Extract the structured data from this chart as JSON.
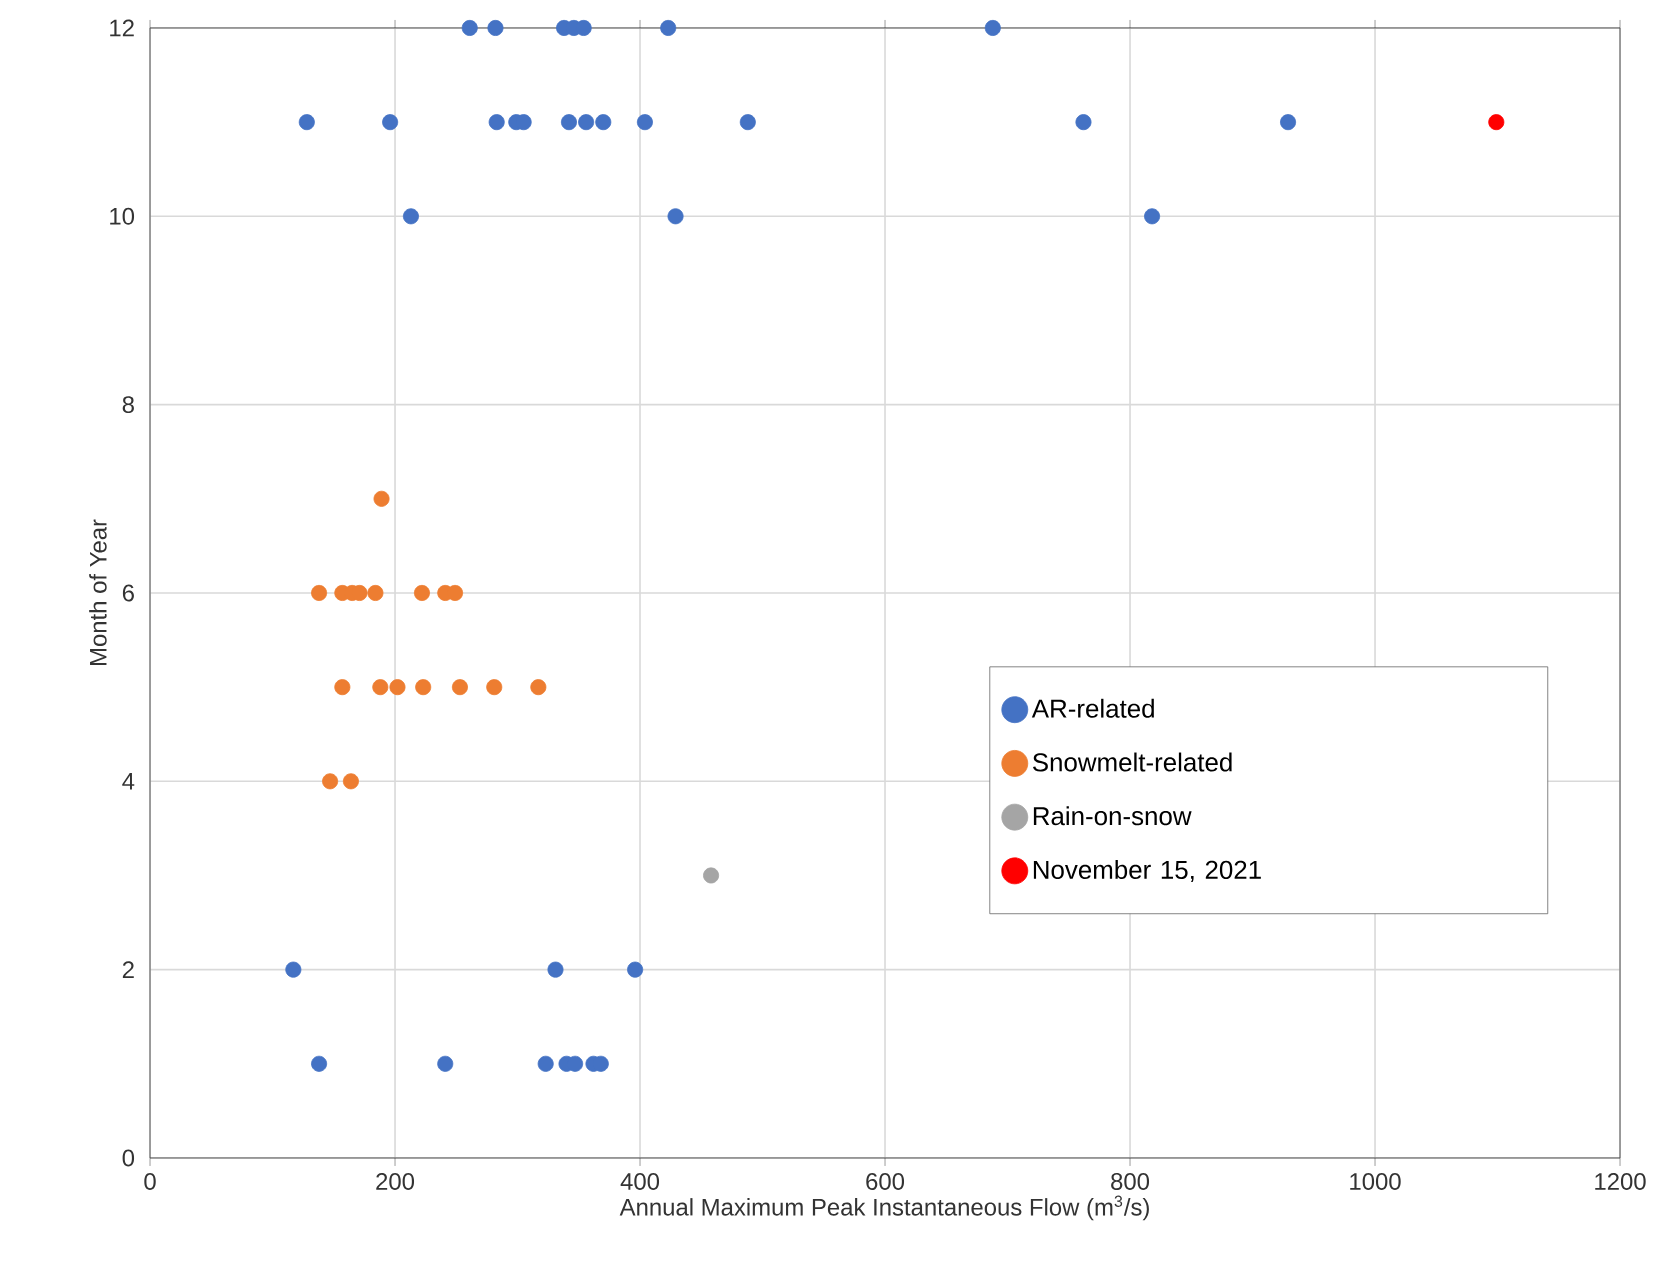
{
  "chart_data": {
    "type": "scatter",
    "xlabel": "Annual Maximum Peak Instantaneous Flow (m$^{3}$/s)",
    "ylabel": "Month of Year",
    "xlim": [
      0,
      1200
    ],
    "xticks": [
      0,
      200,
      400,
      600,
      800,
      1000,
      1200
    ],
    "ylim": [
      0,
      12
    ],
    "yticks": [
      0,
      2,
      4,
      6,
      8,
      10,
      12
    ],
    "grid": true,
    "legend": "bottom right",
    "marker": "circle",
    "series": [
      {
        "name": "AR-related",
        "color": "#4472c4",
        "x": [
          261,
          282,
          338,
          346,
          354,
          423,
          688,
          128,
          196,
          283,
          299,
          305,
          342,
          356,
          370,
          404,
          488,
          762,
          929,
          213,
          429,
          818,
          117,
          331,
          396,
          138,
          241,
          323,
          340,
          347,
          362,
          368
        ],
        "values": [
          12,
          12,
          12,
          12,
          12,
          12,
          12,
          11,
          11,
          11,
          11,
          11,
          11,
          11,
          11,
          11,
          11,
          11,
          11,
          10,
          10,
          10,
          2,
          2,
          2,
          1,
          1,
          1,
          1,
          1,
          1,
          1
        ]
      },
      {
        "name": "Snowmelt-related",
        "color": "#ed7d31",
        "x": [
          189,
          138,
          157,
          165,
          171,
          184,
          222,
          241,
          249,
          157,
          188,
          202,
          223,
          253,
          281,
          317,
          147,
          164
        ],
        "values": [
          7,
          6,
          6,
          6,
          6,
          6,
          6,
          6,
          6,
          5,
          5,
          5,
          5,
          5,
          5,
          5,
          4,
          4
        ]
      },
      {
        "name": "Rain-on-snow",
        "color": "#a5a5a5",
        "x": [
          458
        ],
        "values": [
          3
        ]
      },
      {
        "name": "November 15, 2021",
        "color": "#ff0000",
        "x": [
          1099
        ],
        "values": [
          11
        ]
      }
    ]
  }
}
